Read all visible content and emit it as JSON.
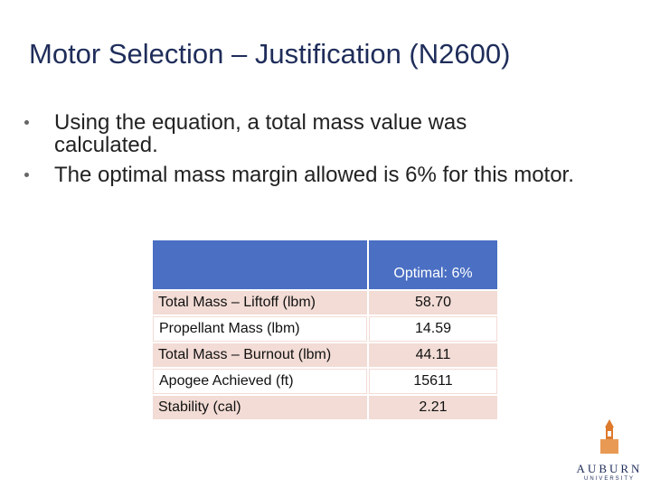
{
  "header": {
    "title": "Motor Selection – Justification (N2600)"
  },
  "bullets": [
    "Using the equation, a total mass value was calculated.",
    "The optimal mass margin allowed is 6% for this motor."
  ],
  "table": {
    "header": [
      "",
      "Optimal: 6%"
    ],
    "rows": [
      [
        "Total Mass – Liftoff (lbm)",
        "58.70"
      ],
      [
        "Propellant Mass (lbm)",
        "14.59"
      ],
      [
        "Total Mass – Burnout (lbm)",
        "44.11"
      ],
      [
        "Apogee Achieved (ft)",
        "15611"
      ],
      [
        "Stability (cal)",
        "2.21"
      ]
    ]
  },
  "logo": {
    "name": "AUBURN",
    "subtitle": "UNIVERSITY"
  }
}
